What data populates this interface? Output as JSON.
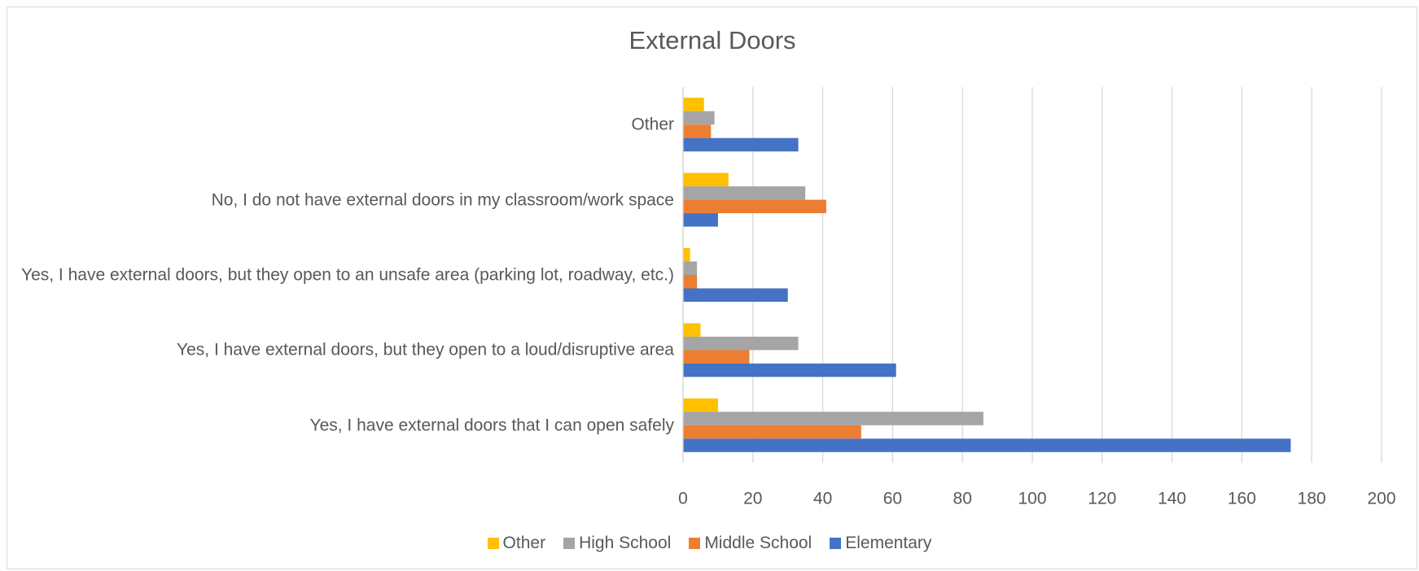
{
  "chart_data": {
    "type": "bar",
    "orientation": "horizontal",
    "title": "External Doors",
    "categories": [
      "Yes, I have external doors that I can open safely",
      "Yes, I have external doors, but they open to a loud/disruptive area",
      "Yes, I have external doors, but they open to an unsafe area (parking lot, roadway, etc.)",
      "No, I do not have external doors in my classroom/work space",
      "Other"
    ],
    "series": [
      {
        "name": "Other",
        "color": "#ffc000",
        "values": [
          10,
          5,
          2,
          13,
          6
        ]
      },
      {
        "name": "High School",
        "color": "#a5a5a5",
        "values": [
          86,
          33,
          4,
          35,
          9
        ]
      },
      {
        "name": "Middle School",
        "color": "#ed7d31",
        "values": [
          51,
          19,
          4,
          41,
          8
        ]
      },
      {
        "name": "Elementary",
        "color": "#4472c4",
        "values": [
          174,
          61,
          30,
          10,
          33
        ]
      }
    ],
    "xlim": [
      0,
      200
    ],
    "xticks": [
      0,
      20,
      40,
      60,
      80,
      100,
      120,
      140,
      160,
      180,
      200
    ],
    "grid": true,
    "legend": "bottom"
  }
}
